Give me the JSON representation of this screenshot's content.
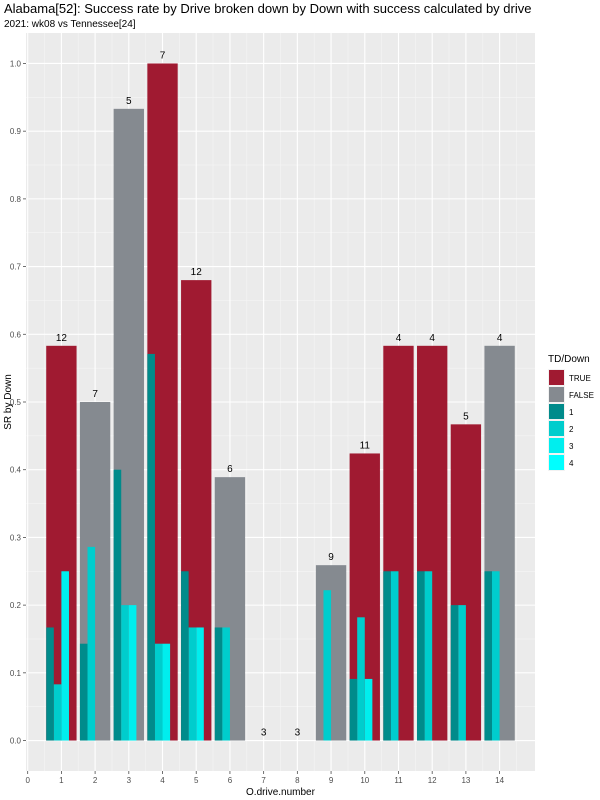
{
  "chart_data": {
    "type": "bar",
    "title": "Alabama[52]: Success rate by Drive broken down by Down with success calculated by drive",
    "subtitle": "2021: wk08 vs Tennessee[24]",
    "xlabel": "O.drive.number",
    "ylabel": "SR by Down",
    "xlim": [
      -0.05,
      15.05
    ],
    "ylim": [
      -0.045,
      1.045
    ],
    "x_ticks": [
      "0",
      "1",
      "2",
      "3",
      "4",
      "5",
      "6",
      "7",
      "8",
      "9",
      "10",
      "11",
      "12",
      "13",
      "14"
    ],
    "y_ticks": [
      "0.0",
      "0.1",
      "0.2",
      "0.3",
      "0.4",
      "0.5",
      "0.6",
      "0.7",
      "0.8",
      "0.9",
      "1.0"
    ],
    "grid": true,
    "legend": {
      "title": "TD/Down",
      "position": "right",
      "items": [
        {
          "label": "TRUE",
          "color": "#A01A31"
        },
        {
          "label": "FALSE",
          "color": "#858A90"
        },
        {
          "label": "1",
          "color": "#008B8B"
        },
        {
          "label": "2",
          "color": "#00CDCD"
        },
        {
          "label": "3",
          "color": "#00EEEE"
        },
        {
          "label": "4",
          "color": "#00FFFF"
        }
      ]
    },
    "drives": [
      {
        "drive": 1,
        "sr": 0.583,
        "td": true,
        "plays": "12",
        "downs": [
          0.167,
          0.083,
          0.25,
          null
        ]
      },
      {
        "drive": 2,
        "sr": 0.5,
        "td": false,
        "plays": "7",
        "downs": [
          0.143,
          0.286,
          null,
          null
        ]
      },
      {
        "drive": 3,
        "sr": 0.933,
        "td": false,
        "plays": "5",
        "downs": [
          0.4,
          0.2,
          0.2,
          null
        ]
      },
      {
        "drive": 4,
        "sr": 1.0,
        "td": true,
        "plays": "7",
        "downs": [
          0.571,
          0.143,
          0.143,
          null
        ]
      },
      {
        "drive": 5,
        "sr": 0.68,
        "td": true,
        "plays": "12",
        "downs": [
          0.25,
          0.167,
          0.167,
          null
        ]
      },
      {
        "drive": 6,
        "sr": 0.389,
        "td": false,
        "plays": "6",
        "downs": [
          0.167,
          0.167,
          null,
          null
        ]
      },
      {
        "drive": 7,
        "sr": 0,
        "td": false,
        "plays": "3",
        "downs": [
          null,
          null,
          null,
          null
        ]
      },
      {
        "drive": 8,
        "sr": 0,
        "td": false,
        "plays": "3",
        "downs": [
          null,
          null,
          null,
          null
        ]
      },
      {
        "drive": 9,
        "sr": 0.259,
        "td": false,
        "plays": "9",
        "downs": [
          null,
          0.222,
          null,
          null
        ]
      },
      {
        "drive": 10,
        "sr": 0.424,
        "td": true,
        "plays": "11",
        "downs": [
          0.091,
          0.182,
          0.091,
          null
        ]
      },
      {
        "drive": 11,
        "sr": 0.583,
        "td": true,
        "plays": "4",
        "downs": [
          0.25,
          0.25,
          null,
          null
        ]
      },
      {
        "drive": 12,
        "sr": 0.583,
        "td": true,
        "plays": "4",
        "downs": [
          0.25,
          0.25,
          null,
          null
        ]
      },
      {
        "drive": 13,
        "sr": 0.467,
        "td": true,
        "plays": "5",
        "downs": [
          0.2,
          0.2,
          null,
          null
        ]
      },
      {
        "drive": 14,
        "sr": 0.583,
        "td": false,
        "plays": "4",
        "downs": [
          0.25,
          0.25,
          null,
          null
        ]
      }
    ]
  }
}
